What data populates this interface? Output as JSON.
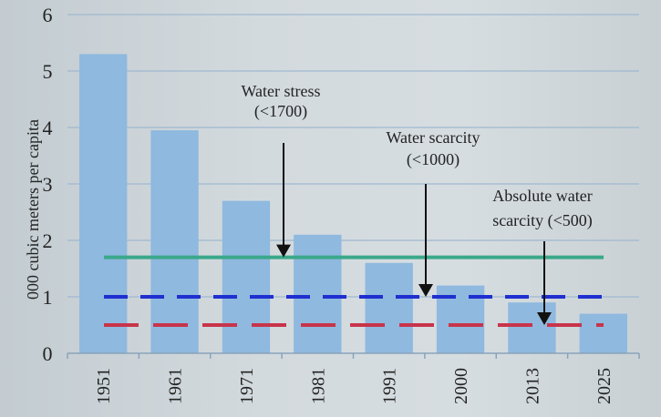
{
  "chart_data": {
    "type": "bar",
    "title": "",
    "xlabel": "",
    "ylabel": "000 cubic meters per capita",
    "ylim": [
      0,
      6
    ],
    "yticks": [
      "0",
      "1",
      "2",
      "3",
      "4",
      "5",
      "6"
    ],
    "grid": true,
    "categories": [
      "1951",
      "1961",
      "1971",
      "1981",
      "1991",
      "2000",
      "2013",
      "2025"
    ],
    "values": [
      5.3,
      3.95,
      2.7,
      2.1,
      1.6,
      1.2,
      0.9,
      0.7
    ],
    "bar_color": "#8fb9df",
    "thresholds": [
      {
        "value": 1.7,
        "style": "solid",
        "color": "#3aa88a",
        "label_line1": "Water stress",
        "label_line2": "(<1700)"
      },
      {
        "value": 1.0,
        "style": "dashed",
        "color": "#1f2fd0",
        "label_line1": "Water scarcity",
        "label_line2": "(<1000)"
      },
      {
        "value": 0.5,
        "style": "dashed",
        "color": "#c8344a",
        "label_line1": "Absolute water",
        "label_line2": "scarcity (<500)"
      }
    ]
  }
}
